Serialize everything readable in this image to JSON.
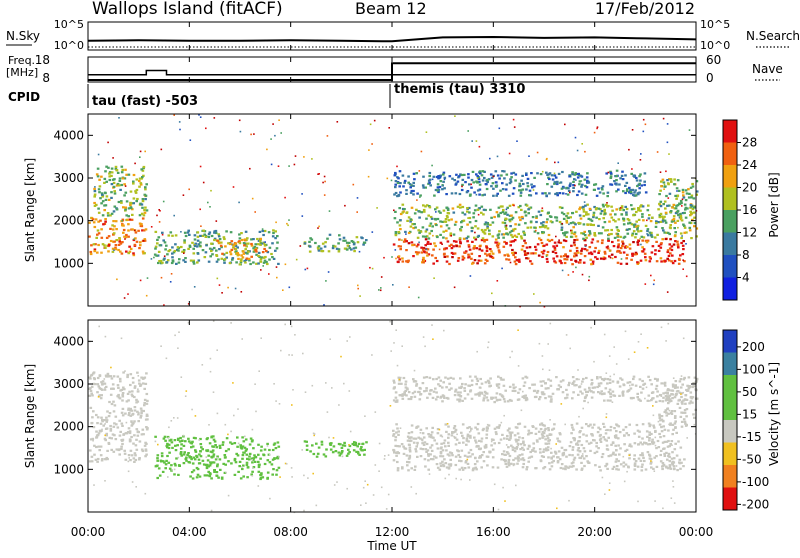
{
  "header": {
    "station": "Wallops Island (fitACF)",
    "beam": "Beam 12",
    "date": "17/Feb/2012"
  },
  "noise_panel": {
    "left_label": "N.Sky",
    "right_label": "N.Search",
    "left_ticks": [
      "10^5",
      "10^0"
    ],
    "right_ticks": [
      "10^5",
      "10^0"
    ]
  },
  "freq_panel": {
    "label_line1": "Freq.",
    "label_line2": "[MHz]",
    "left_ticks": [
      "18",
      "8"
    ],
    "right_label": "Nave",
    "right_ticks": [
      "60",
      "0"
    ]
  },
  "cpid": {
    "label": "CPID",
    "segments": [
      {
        "name": "tau (fast) -503",
        "start_hour": 0
      },
      {
        "name": "themis (tau) 3310",
        "start_hour": 12
      }
    ]
  },
  "time_axis": {
    "title": "Time UT",
    "ticks": [
      "00:00",
      "04:00",
      "08:00",
      "12:00",
      "16:00",
      "20:00",
      "00:00"
    ]
  },
  "chart_data": [
    {
      "type": "line",
      "title": "N.Sky / N.Search",
      "x_unit": "hour UT",
      "x_range": [
        0,
        24
      ],
      "y_scale": "log",
      "y_ticks": [
        "10^5",
        "10^0"
      ],
      "series": [
        {
          "name": "N.Sky",
          "x": [
            0,
            2,
            4,
            6,
            8,
            10,
            12,
            14,
            16,
            18,
            20,
            22,
            24
          ],
          "y_log10": [
            1.5,
            1.6,
            1.5,
            1.5,
            1.6,
            1.5,
            1.4,
            2.2,
            2.3,
            2.1,
            2.2,
            2.0,
            1.8
          ]
        },
        {
          "name": "N.Search",
          "x": [
            0,
            2,
            4,
            6,
            8,
            10,
            12,
            14,
            16,
            18,
            20,
            22,
            24
          ],
          "y_log10": [
            0.2,
            0.2,
            0.2,
            0.2,
            0.2,
            0.2,
            0.2,
            0.2,
            0.2,
            0.2,
            0.2,
            0.2,
            0.2
          ]
        }
      ]
    },
    {
      "type": "line",
      "title": "Freq. / Nave",
      "x_unit": "hour UT",
      "x_range": [
        0,
        24
      ],
      "series": [
        {
          "name": "Freq.",
          "unit": "MHz",
          "ylim": [
            8,
            18
          ],
          "x": [
            0,
            2.3,
            2.3,
            3.1,
            3.1,
            12,
            24
          ],
          "y": [
            10.5,
            10.5,
            12.5,
            12.5,
            10.5,
            10.5,
            10.5
          ]
        },
        {
          "name": "Nave",
          "unit": "",
          "ylim": [
            0,
            60
          ],
          "x": [
            0,
            12,
            12,
            24
          ],
          "y": [
            0,
            0,
            48,
            48
          ]
        }
      ]
    },
    {
      "type": "heatmap",
      "title": "Power [dB]",
      "xlabel": "Time UT",
      "ylabel": "Slant Range [km]",
      "x_range_hours": [
        0,
        24
      ],
      "ylim": [
        0,
        4500
      ],
      "y_ticks": [
        1000,
        2000,
        3000,
        4000
      ],
      "colorbar": {
        "label": "Power [dB]",
        "ticks": [
          4,
          8,
          12,
          16,
          20,
          24,
          28
        ],
        "range": [
          0,
          32
        ]
      },
      "features": [
        {
          "t0": 0.0,
          "t1": 2.3,
          "range_km": [
            1200,
            2100
          ],
          "value": 24
        },
        {
          "t0": 0.2,
          "t1": 2.3,
          "range_km": [
            2100,
            3300
          ],
          "value": 16
        },
        {
          "t0": 2.6,
          "t1": 7.5,
          "range_km": [
            1000,
            1800
          ],
          "value": 14
        },
        {
          "t0": 5.0,
          "t1": 7.0,
          "range_km": [
            1100,
            1600
          ],
          "value": 22
        },
        {
          "t0": 8.5,
          "t1": 11.0,
          "range_km": [
            1300,
            1700
          ],
          "value": 14
        },
        {
          "t0": 12.0,
          "t1": 23.5,
          "range_km": [
            1000,
            1600
          ],
          "value": 28
        },
        {
          "t0": 12.0,
          "t1": 24.0,
          "range_km": [
            1600,
            2400
          ],
          "value": 16
        },
        {
          "t0": 12.0,
          "t1": 22.0,
          "range_km": [
            2600,
            3200
          ],
          "value": 10
        },
        {
          "t0": 22.5,
          "t1": 24.0,
          "range_km": [
            2000,
            3000
          ],
          "value": 16
        }
      ]
    },
    {
      "type": "heatmap",
      "title": "Velocity [m s^-1]",
      "xlabel": "Time UT",
      "ylabel": "Slant Range [km]",
      "x_range_hours": [
        0,
        24
      ],
      "ylim": [
        0,
        4500
      ],
      "y_ticks": [
        1000,
        2000,
        3000,
        4000
      ],
      "colorbar": {
        "label": "Velocity [m s^-1]",
        "ticks": [
          200,
          100,
          50,
          15,
          -15,
          -50,
          -100,
          -200
        ]
      },
      "features": [
        {
          "t0": 0.0,
          "t1": 2.3,
          "range_km": [
            1200,
            3300
          ],
          "value": 0
        },
        {
          "t0": 2.6,
          "t1": 7.5,
          "range_km": [
            800,
            1800
          ],
          "value": 50
        },
        {
          "t0": 8.5,
          "t1": 11.0,
          "range_km": [
            1300,
            1700
          ],
          "value": 50
        },
        {
          "t0": 12.0,
          "t1": 23.5,
          "range_km": [
            1000,
            2100
          ],
          "value": 0
        },
        {
          "t0": 12.0,
          "t1": 24.0,
          "range_km": [
            2600,
            3200
          ],
          "value": 0
        },
        {
          "t0": 22.5,
          "t1": 24.0,
          "range_km": [
            2000,
            3000
          ],
          "value": 0
        }
      ]
    }
  ]
}
